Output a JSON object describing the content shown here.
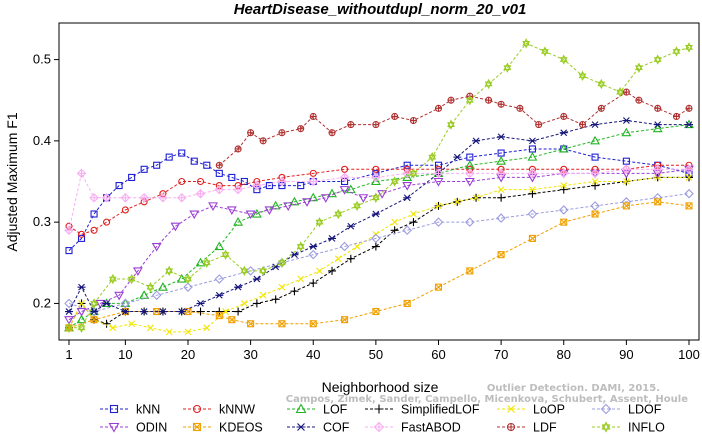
{
  "chart_data": {
    "type": "line",
    "title": "HeartDisease_withoutdupl_norm_20_v01",
    "xlabel": "Neighborhood size",
    "ylabel": "Adjusted Maximum F1",
    "xlim": [
      1,
      100
    ],
    "ylim": [
      0.155,
      0.545
    ],
    "xticks": [
      1,
      10,
      20,
      30,
      40,
      50,
      60,
      70,
      80,
      90,
      100
    ],
    "yticks": [
      0.2,
      0.3,
      0.4,
      0.5
    ],
    "grid": false,
    "legend_position": "bottom",
    "watermark": [
      "Outlier Detection. DAMI, 2015.",
      "Campos, Zimek, Sander, Campello, Micenkova, Schubert, Assent, Houle"
    ],
    "series": [
      {
        "name": "kNN",
        "color": "#1f1fd4",
        "marker": "square",
        "x": [
          1,
          3,
          5,
          7,
          9,
          11,
          13,
          15,
          17,
          19,
          21,
          23,
          25,
          27,
          29,
          31,
          33,
          35,
          38,
          40,
          45,
          50,
          55,
          60,
          65,
          70,
          75,
          80,
          85,
          90,
          95,
          100
        ],
        "y": [
          0.265,
          0.28,
          0.31,
          0.33,
          0.345,
          0.355,
          0.365,
          0.37,
          0.38,
          0.385,
          0.375,
          0.37,
          0.36,
          0.355,
          0.35,
          0.34,
          0.345,
          0.345,
          0.345,
          0.35,
          0.35,
          0.36,
          0.37,
          0.37,
          0.38,
          0.385,
          0.39,
          0.39,
          0.38,
          0.375,
          0.37,
          0.36
        ]
      },
      {
        "name": "kNNW",
        "color": "#e01f1f",
        "marker": "circle",
        "x": [
          1,
          3,
          5,
          7,
          10,
          13,
          16,
          19,
          22,
          25,
          28,
          31,
          35,
          40,
          45,
          50,
          55,
          60,
          65,
          70,
          75,
          80,
          85,
          90,
          95,
          100
        ],
        "y": [
          0.295,
          0.285,
          0.29,
          0.3,
          0.315,
          0.325,
          0.335,
          0.35,
          0.35,
          0.345,
          0.345,
          0.35,
          0.355,
          0.36,
          0.365,
          0.365,
          0.365,
          0.365,
          0.365,
          0.365,
          0.365,
          0.365,
          0.365,
          0.365,
          0.37,
          0.37
        ]
      },
      {
        "name": "LOF",
        "color": "#22b522",
        "marker": "triangle-up",
        "x": [
          1,
          3,
          5,
          7,
          10,
          13,
          16,
          19,
          22,
          25,
          28,
          31,
          34,
          37,
          40,
          43,
          46,
          50,
          55,
          60,
          65,
          70,
          75,
          80,
          85,
          90,
          95,
          100
        ],
        "y": [
          0.17,
          0.18,
          0.19,
          0.2,
          0.2,
          0.21,
          0.22,
          0.23,
          0.25,
          0.27,
          0.3,
          0.31,
          0.32,
          0.325,
          0.33,
          0.335,
          0.34,
          0.35,
          0.355,
          0.36,
          0.37,
          0.375,
          0.38,
          0.39,
          0.4,
          0.41,
          0.415,
          0.42
        ]
      },
      {
        "name": "SimplifiedLOF",
        "color": "#000000",
        "marker": "plus",
        "x": [
          1,
          3,
          5,
          7,
          10,
          13,
          16,
          19,
          22,
          25,
          28,
          31,
          34,
          37,
          40,
          43,
          46,
          50,
          53,
          56,
          60,
          63,
          66,
          70,
          75,
          80,
          85,
          90,
          95,
          100
        ],
        "y": [
          0.17,
          0.2,
          0.18,
          0.175,
          0.19,
          0.19,
          0.19,
          0.19,
          0.19,
          0.19,
          0.19,
          0.2,
          0.205,
          0.215,
          0.225,
          0.24,
          0.255,
          0.27,
          0.29,
          0.3,
          0.32,
          0.325,
          0.33,
          0.33,
          0.335,
          0.34,
          0.345,
          0.35,
          0.355,
          0.355
        ]
      },
      {
        "name": "LoOP",
        "color": "#f2e600",
        "marker": "x",
        "x": [
          1,
          3,
          5,
          8,
          11,
          14,
          17,
          20,
          23,
          26,
          29,
          32,
          35,
          38,
          41,
          44,
          47,
          50,
          53,
          56,
          60,
          63,
          66,
          70,
          75,
          80,
          85,
          90,
          95,
          100
        ],
        "y": [
          0.17,
          0.2,
          0.18,
          0.17,
          0.175,
          0.17,
          0.165,
          0.165,
          0.17,
          0.19,
          0.2,
          0.21,
          0.22,
          0.23,
          0.24,
          0.255,
          0.27,
          0.285,
          0.3,
          0.31,
          0.32,
          0.325,
          0.33,
          0.34,
          0.34,
          0.345,
          0.35,
          0.35,
          0.355,
          0.355
        ]
      },
      {
        "name": "LDOF",
        "color": "#9c9cdf",
        "marker": "diamond",
        "x": [
          1,
          5,
          10,
          15,
          20,
          25,
          30,
          35,
          40,
          45,
          50,
          55,
          60,
          65,
          70,
          75,
          80,
          85,
          90,
          95,
          100
        ],
        "y": [
          0.2,
          0.19,
          0.2,
          0.21,
          0.22,
          0.23,
          0.24,
          0.25,
          0.26,
          0.27,
          0.28,
          0.29,
          0.3,
          0.3,
          0.305,
          0.31,
          0.315,
          0.32,
          0.325,
          0.33,
          0.335
        ]
      },
      {
        "name": "ODIN",
        "color": "#9b3fd4",
        "marker": "triangle-down",
        "x": [
          1,
          3,
          6,
          9,
          12,
          15,
          18,
          21,
          24,
          27,
          30,
          33,
          36,
          39,
          42,
          45,
          48,
          51,
          55,
          60,
          65,
          70,
          75,
          80,
          85,
          90,
          95,
          100
        ],
        "y": [
          0.18,
          0.19,
          0.2,
          0.21,
          0.24,
          0.27,
          0.295,
          0.31,
          0.32,
          0.315,
          0.31,
          0.315,
          0.32,
          0.325,
          0.33,
          0.34,
          0.33,
          0.335,
          0.345,
          0.35,
          0.35,
          0.355,
          0.355,
          0.36,
          0.36,
          0.36,
          0.36,
          0.365
        ]
      },
      {
        "name": "KDEOS",
        "color": "#f0a000",
        "marker": "square-x",
        "x": [
          1,
          5,
          10,
          15,
          20,
          25,
          27,
          30,
          35,
          40,
          45,
          50,
          55,
          60,
          65,
          70,
          75,
          80,
          85,
          90,
          95,
          100
        ],
        "y": [
          0.17,
          0.18,
          0.19,
          0.19,
          0.19,
          0.185,
          0.18,
          0.175,
          0.175,
          0.175,
          0.18,
          0.19,
          0.2,
          0.22,
          0.24,
          0.26,
          0.28,
          0.3,
          0.31,
          0.32,
          0.325,
          0.32
        ]
      },
      {
        "name": "COF",
        "color": "#14147a",
        "marker": "asterisk",
        "x": [
          1,
          3,
          5,
          7,
          10,
          13,
          16,
          19,
          22,
          25,
          28,
          31,
          34,
          37,
          40,
          43,
          46,
          50,
          55,
          60,
          63,
          66,
          70,
          75,
          80,
          85,
          90,
          95,
          100
        ],
        "y": [
          0.19,
          0.22,
          0.19,
          0.2,
          0.19,
          0.19,
          0.19,
          0.19,
          0.2,
          0.21,
          0.22,
          0.23,
          0.245,
          0.26,
          0.27,
          0.28,
          0.295,
          0.31,
          0.33,
          0.36,
          0.38,
          0.4,
          0.405,
          0.4,
          0.41,
          0.42,
          0.425,
          0.42,
          0.42
        ]
      },
      {
        "name": "FastABOD",
        "color": "#f7aef2",
        "marker": "diamond-plus",
        "x": [
          1,
          3,
          5,
          7,
          10,
          13,
          16,
          19,
          22,
          25,
          28,
          31,
          35,
          40,
          45,
          50,
          55,
          60,
          65,
          70,
          75,
          80,
          85,
          90,
          95,
          100
        ],
        "y": [
          0.29,
          0.36,
          0.33,
          0.33,
          0.33,
          0.33,
          0.33,
          0.33,
          0.335,
          0.34,
          0.34,
          0.345,
          0.35,
          0.35,
          0.355,
          0.355,
          0.36,
          0.36,
          0.36,
          0.36,
          0.36,
          0.36,
          0.36,
          0.365,
          0.365,
          0.365
        ]
      },
      {
        "name": "LDF",
        "color": "#b03030",
        "marker": "circle-plus",
        "x": [
          25,
          28,
          30,
          32,
          35,
          38,
          40,
          43,
          46,
          50,
          53,
          56,
          60,
          62,
          65,
          68,
          70,
          73,
          76,
          80,
          83,
          86,
          90,
          92,
          95,
          98,
          100
        ],
        "y": [
          0.37,
          0.39,
          0.41,
          0.4,
          0.41,
          0.415,
          0.43,
          0.41,
          0.42,
          0.42,
          0.43,
          0.425,
          0.44,
          0.45,
          0.455,
          0.45,
          0.445,
          0.44,
          0.42,
          0.43,
          0.42,
          0.44,
          0.46,
          0.45,
          0.44,
          0.43,
          0.44
        ]
      },
      {
        "name": "INFLO",
        "color": "#99cc22",
        "marker": "hexstar",
        "x": [
          1,
          3,
          5,
          8,
          11,
          14,
          17,
          20,
          23,
          26,
          29,
          32,
          35,
          38,
          41,
          44,
          47,
          50,
          53,
          56,
          59,
          62,
          65,
          68,
          71,
          74,
          77,
          80,
          83,
          86,
          89,
          92,
          95,
          98,
          100
        ],
        "y": [
          0.17,
          0.17,
          0.2,
          0.23,
          0.23,
          0.22,
          0.24,
          0.23,
          0.25,
          0.26,
          0.24,
          0.24,
          0.25,
          0.27,
          0.3,
          0.31,
          0.32,
          0.33,
          0.35,
          0.36,
          0.38,
          0.42,
          0.45,
          0.47,
          0.49,
          0.52,
          0.51,
          0.5,
          0.48,
          0.47,
          0.46,
          0.49,
          0.5,
          0.51,
          0.515
        ]
      }
    ]
  }
}
